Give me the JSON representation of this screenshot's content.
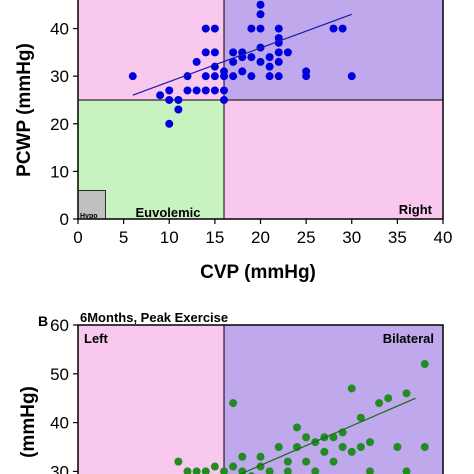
{
  "chart_data": [
    {
      "type": "scatter",
      "xlabel": "CVP (mmHg)",
      "ylabel": "PCWP (mmHg)",
      "xlim": [
        0,
        40
      ],
      "ylim": [
        0,
        46
      ],
      "x_ticks": [
        "0",
        "5",
        "10",
        "15",
        "20",
        "25",
        "30",
        "35",
        "40"
      ],
      "y_ticks": [
        "0",
        "10",
        "20",
        "30",
        "40"
      ],
      "thresholds": {
        "x": 16,
        "y": 25
      },
      "regions": [
        {
          "label": "",
          "color": "#f8c8ee",
          "x": [
            0,
            16
          ],
          "y": [
            25,
            46
          ]
        },
        {
          "label": "",
          "color": "#c0a8ec",
          "x": [
            16,
            40
          ],
          "y": [
            25,
            46
          ]
        },
        {
          "label": "Euvolemic",
          "color": "#c8f2c0",
          "x": [
            0,
            16
          ],
          "y": [
            0,
            25
          ]
        },
        {
          "label": "Right",
          "color": "#f8c8ee",
          "x": [
            16,
            40
          ],
          "y": [
            0,
            25
          ]
        },
        {
          "label": "Hypo",
          "color": "#c0c0c0",
          "x": [
            0,
            3
          ],
          "y": [
            0,
            6
          ]
        }
      ],
      "marker_color": "#0000dd",
      "points": [
        [
          6,
          30
        ],
        [
          9,
          26
        ],
        [
          10,
          27
        ],
        [
          10,
          25
        ],
        [
          10,
          20
        ],
        [
          11,
          23
        ],
        [
          11,
          25
        ],
        [
          12,
          27
        ],
        [
          12,
          30
        ],
        [
          13,
          27
        ],
        [
          13,
          33
        ],
        [
          14,
          27
        ],
        [
          14,
          30
        ],
        [
          14,
          35
        ],
        [
          14,
          40
        ],
        [
          15,
          27
        ],
        [
          15,
          30
        ],
        [
          15,
          32
        ],
        [
          15,
          35
        ],
        [
          15,
          40
        ],
        [
          16,
          27
        ],
        [
          16,
          30
        ],
        [
          16,
          31
        ],
        [
          16,
          25
        ],
        [
          17,
          30
        ],
        [
          17,
          33
        ],
        [
          17,
          35
        ],
        [
          18,
          31
        ],
        [
          18,
          34
        ],
        [
          18,
          35
        ],
        [
          19,
          30
        ],
        [
          19,
          34
        ],
        [
          19,
          40
        ],
        [
          20,
          45
        ],
        [
          20,
          43
        ],
        [
          20,
          40
        ],
        [
          20,
          36
        ],
        [
          20,
          33
        ],
        [
          21,
          30
        ],
        [
          21,
          32
        ],
        [
          21,
          34
        ],
        [
          22,
          30
        ],
        [
          22,
          35
        ],
        [
          22,
          37
        ],
        [
          22,
          38
        ],
        [
          22,
          33
        ],
        [
          22,
          40
        ],
        [
          23,
          35
        ],
        [
          25,
          31
        ],
        [
          25,
          30
        ],
        [
          28,
          40
        ],
        [
          29,
          40
        ],
        [
          30,
          30
        ]
      ],
      "trend": {
        "x": [
          6,
          30
        ],
        "y": [
          26,
          43
        ]
      }
    },
    {
      "type": "scatter",
      "panel_label": "B",
      "title": "6Months, Peak Exercise",
      "ylabel": "(mmHg)",
      "xlim": [
        0,
        40
      ],
      "ylim": [
        0,
        60
      ],
      "y_ticks": [
        "30",
        "40",
        "50",
        "60"
      ],
      "thresholds": {
        "x": 16,
        "y": 25
      },
      "regions": [
        {
          "label": "Left",
          "color": "#f8c8ee",
          "x": [
            0,
            16
          ],
          "y": [
            25,
            60
          ]
        },
        {
          "label": "Bilateral",
          "color": "#c0a8ec",
          "x": [
            16,
            40
          ],
          "y": [
            25,
            60
          ]
        }
      ],
      "marker_color": "#228b22",
      "points": [
        [
          11,
          32
        ],
        [
          12,
          30
        ],
        [
          13,
          30
        ],
        [
          14,
          30
        ],
        [
          15,
          31
        ],
        [
          16,
          30
        ],
        [
          17,
          31
        ],
        [
          18,
          33
        ],
        [
          18,
          30
        ],
        [
          17,
          44
        ],
        [
          19,
          29
        ],
        [
          20,
          33
        ],
        [
          20,
          31
        ],
        [
          21,
          30
        ],
        [
          22,
          35
        ],
        [
          23,
          32
        ],
        [
          23,
          30
        ],
        [
          24,
          35
        ],
        [
          24,
          39
        ],
        [
          25,
          37
        ],
        [
          25,
          32
        ],
        [
          26,
          36
        ],
        [
          26,
          30
        ],
        [
          27,
          37
        ],
        [
          27,
          34
        ],
        [
          28,
          37
        ],
        [
          28,
          32
        ],
        [
          29,
          38
        ],
        [
          29,
          35
        ],
        [
          30,
          47
        ],
        [
          30,
          34
        ],
        [
          31,
          41
        ],
        [
          31,
          35
        ],
        [
          32,
          36
        ],
        [
          32,
          30
        ],
        [
          33,
          44
        ],
        [
          34,
          45
        ],
        [
          35,
          35
        ],
        [
          36,
          46
        ],
        [
          36,
          30
        ],
        [
          38,
          52
        ],
        [
          38,
          35
        ]
      ],
      "trend": {
        "x": [
          16,
          37
        ],
        "y": [
          28,
          45
        ]
      }
    }
  ]
}
